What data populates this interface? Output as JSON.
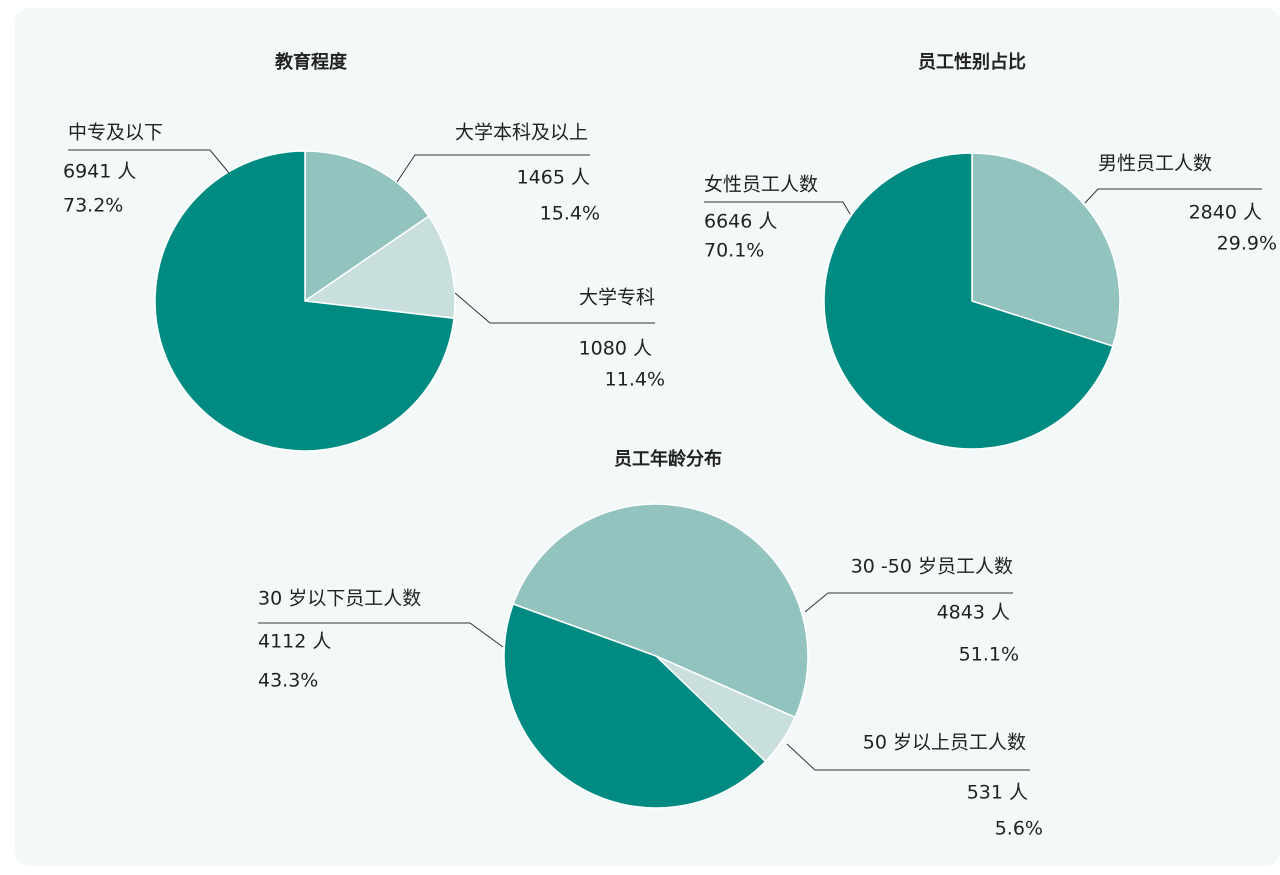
{
  "chart_data": [
    {
      "type": "pie",
      "title": "教育程度",
      "categories": [
        "大学本科及以上",
        "大学专科",
        "中专及以下"
      ],
      "values": [
        1465,
        1080,
        6941
      ],
      "value_labels": [
        "1465 人",
        "1080 人",
        "6941 人"
      ],
      "shares": [
        15.4,
        11.4,
        73.2
      ],
      "share_labels": [
        "15.4%",
        "11.4%",
        "73.2%"
      ],
      "colors": [
        "#93c3bf",
        "#c9dfdd",
        "#008b82"
      ]
    },
    {
      "type": "pie",
      "title": "员工性别占比",
      "categories": [
        "男性员工人数",
        "女性员工人数"
      ],
      "values": [
        2840,
        6646
      ],
      "value_labels": [
        "2840 人",
        "6646 人"
      ],
      "shares": [
        29.9,
        70.1
      ],
      "share_labels": [
        "29.9%",
        "70.1%"
      ],
      "colors": [
        "#93c3bf",
        "#008b82"
      ]
    },
    {
      "type": "pie",
      "title": "员工年龄分布",
      "categories": [
        "30 -50 岁员工人数",
        "50 岁以上员工人数",
        "30 岁以下员工人数"
      ],
      "values": [
        4843,
        531,
        4112
      ],
      "value_labels": [
        "4843 人",
        "531 人",
        "4112 人"
      ],
      "shares": [
        51.1,
        5.6,
        43.3
      ],
      "share_labels": [
        "51.1%",
        "5.6%",
        "43.3%"
      ],
      "colors": [
        "#93c3bf",
        "#c9dfdd",
        "#008b82"
      ]
    }
  ]
}
